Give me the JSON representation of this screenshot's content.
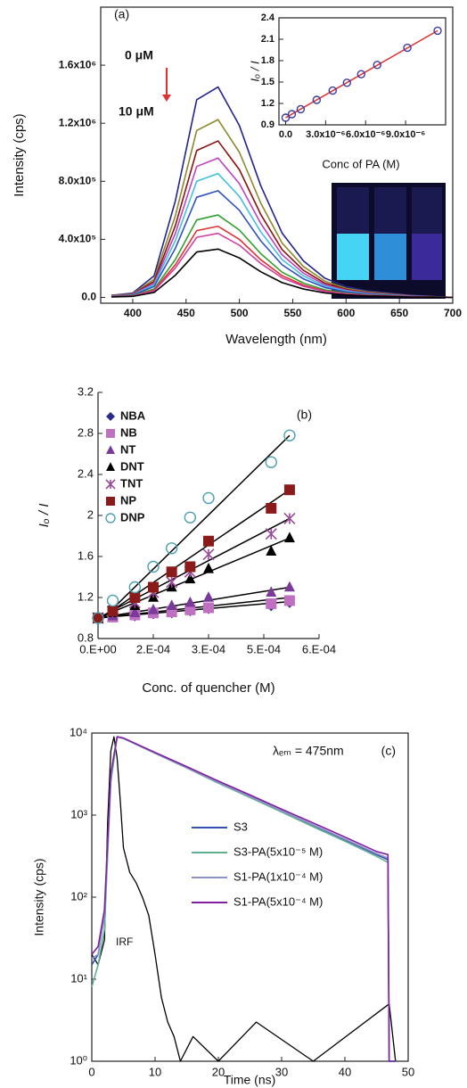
{
  "chart_data": [
    {
      "type": "line",
      "title": "(a)",
      "x_label": "Wavelength (nm)",
      "y_label": "Intensity (cps)",
      "annotations": [
        "0 μM",
        "10 μM"
      ],
      "x": [
        380,
        400,
        420,
        440,
        460,
        480,
        500,
        520,
        540,
        560,
        580,
        600,
        620,
        640,
        660,
        680,
        700
      ],
      "series": [
        {
          "color": "#23238f",
          "values": [
            14800,
            29600,
            148000,
            666000,
            1362000,
            1450000,
            1184000,
            770000,
            444000,
            252000,
            133000,
            74000,
            44000,
            30000,
            15000,
            7000,
            0
          ]
        },
        {
          "color": "#8a8a2a",
          "values": [
            13000,
            25000,
            125000,
            563000,
            1150000,
            1225000,
            1000000,
            650000,
            375000,
            213000,
            113000,
            63000,
            38000,
            25000,
            13000,
            6000,
            0
          ]
        },
        {
          "color": "#8b1010",
          "values": [
            11000,
            22000,
            110000,
            495000,
            1012000,
            1078000,
            880000,
            572000,
            330000,
            187000,
            99000,
            55000,
            33000,
            22000,
            11000,
            6000,
            0
          ]
        },
        {
          "color": "#c040c0",
          "values": [
            10000,
            20000,
            98000,
            441000,
            902000,
            960000,
            784000,
            510000,
            294000,
            167000,
            88000,
            49000,
            29000,
            20000,
            10000,
            5000,
            0
          ]
        },
        {
          "color": "#40c0e0",
          "values": [
            9000,
            17000,
            87000,
            392000,
            800000,
            853000,
            696000,
            452000,
            261000,
            148000,
            78000,
            44000,
            26000,
            17000,
            9000,
            4000,
            0
          ]
        },
        {
          "color": "#3050c0",
          "values": [
            8000,
            15000,
            75000,
            338000,
            690000,
            735000,
            600000,
            390000,
            225000,
            128000,
            68000,
            38000,
            23000,
            15000,
            8000,
            4000,
            0
          ]
        },
        {
          "color": "#30a030",
          "values": [
            6000,
            12000,
            58000,
            261000,
            534000,
            568000,
            464000,
            302000,
            174000,
            99000,
            52000,
            29000,
            17000,
            12000,
            6000,
            3000,
            0
          ]
        },
        {
          "color": "#e03030",
          "values": [
            5000,
            10000,
            50000,
            225000,
            460000,
            490000,
            400000,
            260000,
            150000,
            85000,
            45000,
            25000,
            15000,
            10000,
            5000,
            3000,
            0
          ]
        },
        {
          "color": "#d040a0",
          "values": [
            5000,
            9000,
            45000,
            203000,
            414000,
            441000,
            360000,
            234000,
            135000,
            77000,
            41000,
            23000,
            14000,
            9000,
            5000,
            2000,
            0
          ]
        },
        {
          "color": "#000000",
          "values": [
            3000,
            7000,
            34000,
            153000,
            313000,
            333000,
            272000,
            177000,
            102000,
            58000,
            31000,
            17000,
            10000,
            7000,
            3000,
            2000,
            0
          ]
        }
      ],
      "xlim": [
        370,
        700
      ],
      "xticks": [
        400,
        450,
        500,
        550,
        600,
        650,
        700
      ],
      "ylim": [
        -40000,
        2000000
      ],
      "yticks": [
        {
          "value": 0,
          "label": "0.0"
        },
        {
          "value": 400000,
          "label": "4.0x10⁵"
        },
        {
          "value": 800000,
          "label": "8.0x10⁵"
        },
        {
          "value": 1200000,
          "label": "1.2x10⁶"
        },
        {
          "value": 1600000,
          "label": "1.6x10⁶"
        }
      ]
    },
    {
      "type": "scatter",
      "x_label": "Conc of PA (M)",
      "y_label": "Iₒ / I",
      "x": [
        0,
        4.7e-07,
        1.13e-06,
        2.33e-06,
        3.53e-06,
        4.6e-06,
        5.67e-06,
        6.87e-06,
        9.13e-06,
        1.14e-05
      ],
      "series": [
        {
          "color": "#3a3aa0",
          "marker": "circle-open",
          "values": [
            1.0,
            1.05,
            1.12,
            1.25,
            1.38,
            1.49,
            1.61,
            1.74,
            1.98,
            2.22
          ],
          "fit": [
            1.0,
            2.22
          ]
        }
      ],
      "fit_x": [
        0,
        1.14e-05
      ],
      "fit_color": "#e03030",
      "xlim": [
        -5e-07,
        1.2e-05
      ],
      "xticks": [
        {
          "value": 0,
          "label": "0.0"
        },
        {
          "value": 3e-06,
          "label": "3.0x10⁻⁶"
        },
        {
          "value": 6e-06,
          "label": "6.0x10⁻⁶"
        },
        {
          "value": 9e-06,
          "label": "9.0x10⁻⁶"
        }
      ],
      "ylim": [
        0.9,
        2.4
      ],
      "yticks": [
        0.9,
        1.2,
        1.5,
        1.8,
        2.1,
        2.4
      ]
    },
    {
      "type": "scatter",
      "title": "(b)",
      "x_label": "Conc. of quencher (M)",
      "y_label": "Iₒ / I",
      "x": [
        0,
        4e-05,
        0.0001,
        0.00015,
        0.0002,
        0.00025,
        0.0003,
        0.00047,
        0.00052
      ],
      "fit_x": [
        0,
        0.00052
      ],
      "fit_color": "#000000",
      "series": [
        {
          "name": "NBA",
          "color": "#2a2a8a",
          "marker": "diamond",
          "values": [
            1.0,
            1.01,
            1.02,
            1.04,
            1.05,
            1.07,
            1.09,
            1.12,
            1.15
          ],
          "fit": [
            1.0,
            1.16
          ]
        },
        {
          "name": "NB",
          "color": "#c070c0",
          "marker": "square",
          "values": [
            1.0,
            1.01,
            1.03,
            1.05,
            1.06,
            1.08,
            1.1,
            1.14,
            1.17
          ],
          "fit": [
            1.0,
            1.2
          ]
        },
        {
          "name": "NT",
          "color": "#7a3a9a",
          "marker": "triangle",
          "values": [
            1.0,
            1.02,
            1.05,
            1.08,
            1.12,
            1.15,
            1.2,
            1.25,
            1.3
          ],
          "fit": [
            1.0,
            1.3
          ]
        },
        {
          "name": "DNT",
          "color": "#000000",
          "marker": "triangle",
          "values": [
            1.0,
            1.05,
            1.12,
            1.2,
            1.3,
            1.38,
            1.48,
            1.65,
            1.78
          ],
          "fit": [
            1.0,
            1.78
          ]
        },
        {
          "name": "TNT",
          "color": "#9a4a9a",
          "marker": "x",
          "values": [
            1.0,
            1.06,
            1.15,
            1.25,
            1.35,
            1.45,
            1.62,
            1.82,
            1.97
          ],
          "fit": [
            1.0,
            1.97
          ]
        },
        {
          "name": "NP",
          "color": "#8b1a1a",
          "marker": "square",
          "values": [
            1.0,
            1.07,
            1.2,
            1.3,
            1.45,
            1.5,
            1.75,
            2.07,
            2.25
          ],
          "fit": [
            0.98,
            2.25
          ]
        },
        {
          "name": "DNP",
          "color": "#4aa0b0",
          "marker": "circle-open",
          "values": [
            1.0,
            1.17,
            1.3,
            1.5,
            1.68,
            1.98,
            2.17,
            2.52,
            2.78
          ],
          "fit": [
            0.95,
            2.78
          ]
        }
      ],
      "xlim": [
        0,
        0.0006
      ],
      "xticks": [
        {
          "value": 0,
          "label": "0.E+00"
        },
        {
          "value": 0.00015,
          "label": "2.E-04"
        },
        {
          "value": 0.0003,
          "label": "3.E-04"
        },
        {
          "value": 0.00045,
          "label": "5.E-04"
        },
        {
          "value": 0.0006,
          "label": "6.E-04"
        }
      ],
      "ylim": [
        0.8,
        3.2
      ],
      "yticks": [
        0.8,
        1.2,
        1.6,
        2,
        2.4,
        2.8,
        3.2
      ],
      "legend": "upper left"
    },
    {
      "type": "line",
      "title": "(c)",
      "x_label": "Time (ns)",
      "y_label": "Intensity (cps)",
      "log_y": true,
      "annotations": [
        "λₑₘ = 475nm"
      ],
      "x": [
        0,
        1,
        2,
        3,
        4,
        5,
        10,
        15,
        20,
        25,
        30,
        35,
        40,
        45,
        46.8,
        47,
        48
      ],
      "series": [
        {
          "name": "S3",
          "color": "#3050b0",
          "values": [
            15,
            20,
            60,
            3000,
            9000,
            8600,
            5700,
            3800,
            2500,
            1700,
            1120,
            750,
            500,
            330,
            285,
            1,
            1
          ]
        },
        {
          "name": "S3-PA(5x10⁻⁵ M)",
          "color": "#60b090",
          "values": [
            8,
            15,
            40,
            2500,
            9000,
            8600,
            5650,
            3750,
            2450,
            1640,
            1090,
            720,
            480,
            315,
            265,
            1,
            1
          ]
        },
        {
          "name": "S1-PA(1x10⁻⁴ M)",
          "color": "#9090c8",
          "values": [
            18,
            20,
            60,
            3000,
            9000,
            8600,
            5700,
            3800,
            2500,
            1690,
            1130,
            760,
            510,
            340,
            300,
            1,
            1
          ]
        },
        {
          "name": "S1-PA(5x10⁻⁴ M)",
          "color": "#8020a0",
          "values": [
            20,
            25,
            70,
            3200,
            9000,
            8700,
            5800,
            3900,
            2600,
            1760,
            1180,
            800,
            540,
            360,
            330,
            1,
            1
          ]
        }
      ],
      "irf": {
        "label": "IRF",
        "color": "#000000",
        "x": [
          0,
          1,
          2,
          2.5,
          3,
          3.5,
          4,
          4.5,
          5,
          6,
          7,
          8,
          9,
          10,
          11,
          12,
          13,
          14,
          16,
          20,
          26,
          35,
          47,
          48
        ],
        "values": [
          20,
          15,
          30,
          800,
          6000,
          9000,
          5000,
          1500,
          400,
          200,
          150,
          100,
          60,
          20,
          6,
          3,
          2,
          1,
          2,
          1,
          3,
          1,
          5,
          1
        ]
      },
      "xlim": [
        0,
        50
      ],
      "xticks": [
        0,
        10,
        20,
        30,
        40,
        50
      ],
      "ylim": [
        1,
        10000
      ],
      "yticks": [
        {
          "value": 1,
          "label": "10⁰"
        },
        {
          "value": 10,
          "label": "10¹"
        },
        {
          "value": 100,
          "label": "10²"
        },
        {
          "value": 1000,
          "label": "10³"
        },
        {
          "value": 10000,
          "label": "10⁴"
        }
      ],
      "legend": "center"
    }
  ]
}
